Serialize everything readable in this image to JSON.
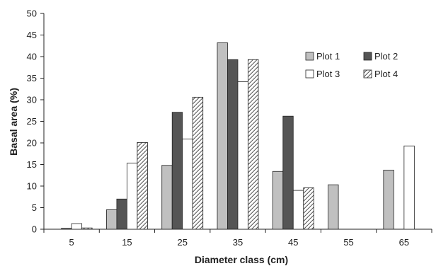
{
  "chart_data": {
    "type": "bar",
    "title": "",
    "xlabel": "Diameter class (cm)",
    "ylabel": "Basal area (%)",
    "categories": [
      "5",
      "15",
      "25",
      "35",
      "45",
      "55",
      "65"
    ],
    "ylim": [
      0,
      50
    ],
    "yticks": [
      "0",
      "5",
      "10",
      "15",
      "20",
      "25",
      "30",
      "35",
      "40",
      "45",
      "50"
    ],
    "grid": false,
    "legend_position": "top-right",
    "series": [
      {
        "name": "Plot 1",
        "color": "#c0c0c0",
        "pattern": "solid",
        "values": [
          0,
          4.5,
          14.8,
          43.2,
          13.4,
          10.3,
          13.7
        ]
      },
      {
        "name": "Plot 2",
        "color": "#555555",
        "pattern": "solid",
        "values": [
          0.2,
          7.0,
          27.1,
          39.3,
          26.2,
          0,
          0
        ]
      },
      {
        "name": "Plot 3",
        "color": "#ffffff",
        "pattern": "outline",
        "values": [
          1.3,
          15.3,
          20.9,
          34.2,
          9.0,
          0,
          19.3
        ]
      },
      {
        "name": "Plot 4",
        "color": "#ffffff",
        "pattern": "hatched",
        "values": [
          0.3,
          20.1,
          30.6,
          39.3,
          9.6,
          0,
          0
        ]
      }
    ]
  }
}
